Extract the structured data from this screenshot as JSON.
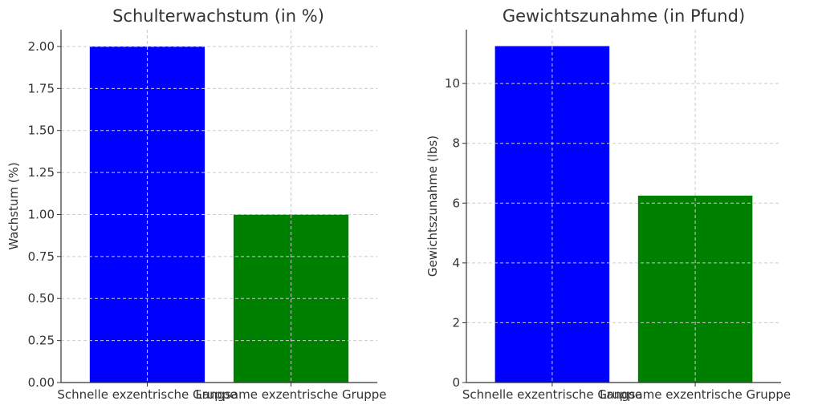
{
  "chart_data": [
    {
      "type": "bar",
      "title": "Schulterwachstum (in %)",
      "xlabel": "",
      "ylabel": "Wachstum (%)",
      "categories": [
        "Schnelle exzentrische Gruppe",
        "Langsame exzentrische Gruppe"
      ],
      "values": [
        2.0,
        1.0
      ],
      "colors": [
        "#0000ff",
        "#008000"
      ],
      "ylim": [
        0,
        2.1
      ],
      "yticks": [
        "0.00",
        "0.25",
        "0.50",
        "0.75",
        "1.00",
        "1.25",
        "1.50",
        "1.75",
        "2.00"
      ],
      "ytick_values": [
        0,
        0.25,
        0.5,
        0.75,
        1.0,
        1.25,
        1.5,
        1.75,
        2.0
      ],
      "grid": true
    },
    {
      "type": "bar",
      "title": "Gewichtszunahme (in Pfund)",
      "xlabel": "",
      "ylabel": "Gewichtszunahme (lbs)",
      "categories": [
        "Schnelle exzentrische Gruppe",
        "Langsame exzentrische Gruppe"
      ],
      "values": [
        11.25,
        6.25
      ],
      "colors": [
        "#0000ff",
        "#008000"
      ],
      "ylim": [
        0,
        11.8
      ],
      "yticks": [
        "0",
        "2",
        "4",
        "6",
        "8",
        "10"
      ],
      "ytick_values": [
        0,
        2,
        4,
        6,
        8,
        10
      ],
      "grid": true
    }
  ]
}
